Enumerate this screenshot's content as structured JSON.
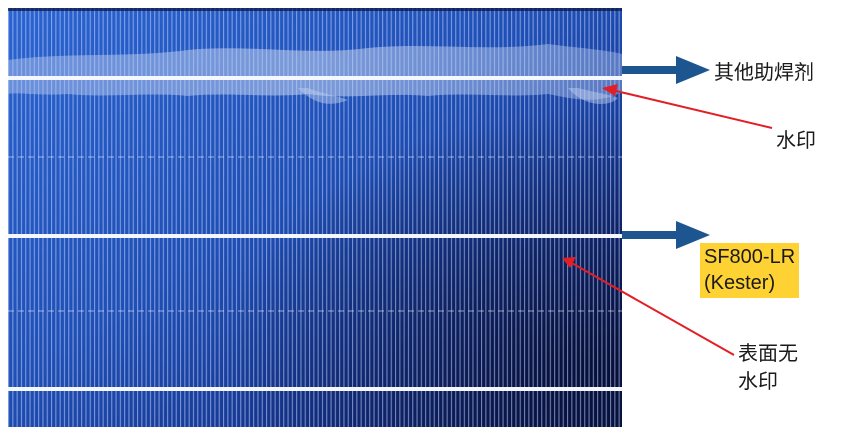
{
  "annotations": {
    "flux_label": "其他助焊剂",
    "watermark_label": "水印",
    "product_line1": "SF800-LR",
    "product_line2": "(Kester)",
    "no_watermark_line1": "表面无",
    "no_watermark_line2": "水印"
  },
  "colors": {
    "cell_blue": "#1f4fb5",
    "cell_dark": "#0b1a55",
    "busbar": "#f4f7ff",
    "arrow_blue": "#1c5590",
    "pointer_red": "#e21f26",
    "highlight": "#ffd233"
  }
}
